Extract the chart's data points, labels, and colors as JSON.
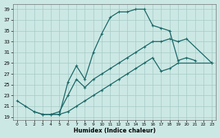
{
  "xlabel": "Humidex (Indice chaleur)",
  "bg_color": "#cce8e4",
  "grid_color": "#a8ccc8",
  "line_color": "#1a6868",
  "xlim": [
    -0.5,
    23.5
  ],
  "ylim": [
    18.5,
    40.0
  ],
  "ytick_vals": [
    19,
    21,
    23,
    25,
    27,
    29,
    31,
    33,
    35,
    37,
    39
  ],
  "xtick_vals": [
    0,
    1,
    2,
    3,
    4,
    5,
    6,
    7,
    8,
    9,
    10,
    11,
    12,
    13,
    14,
    15,
    16,
    17,
    18,
    19,
    20,
    21,
    22,
    23
  ],
  "line1_x": [
    0,
    1,
    2,
    3,
    4,
    5,
    6,
    7,
    8,
    9,
    10,
    11,
    12,
    13,
    14,
    15,
    16,
    17,
    18,
    19,
    20,
    21
  ],
  "line1_y": [
    22.0,
    21.0,
    20.0,
    19.5,
    19.5,
    19.5,
    25.5,
    28.5,
    26.0,
    31.0,
    34.5,
    37.5,
    38.5,
    38.5,
    39.0,
    39.0,
    36.0,
    35.5,
    35.0,
    29.5,
    30.0,
    29.5
  ],
  "line2_x": [
    2,
    3,
    4,
    5,
    6,
    7,
    8,
    9,
    10,
    11,
    12,
    13,
    14,
    15,
    16,
    17,
    18,
    19,
    20,
    23
  ],
  "line2_y": [
    20.0,
    19.5,
    19.5,
    20.0,
    23.0,
    26.0,
    24.5,
    26.0,
    27.0,
    28.0,
    29.0,
    30.0,
    31.0,
    32.0,
    33.0,
    33.0,
    33.5,
    33.0,
    33.5,
    29.0
  ],
  "line3_x": [
    3,
    4,
    5,
    6,
    7,
    8,
    9,
    10,
    11,
    12,
    13,
    14,
    15,
    16,
    17,
    18,
    19,
    23
  ],
  "line3_y": [
    19.5,
    19.5,
    19.5,
    20.0,
    21.0,
    22.0,
    23.0,
    24.0,
    25.0,
    26.0,
    27.0,
    28.0,
    29.0,
    30.0,
    27.5,
    28.0,
    29.0,
    29.0
  ]
}
